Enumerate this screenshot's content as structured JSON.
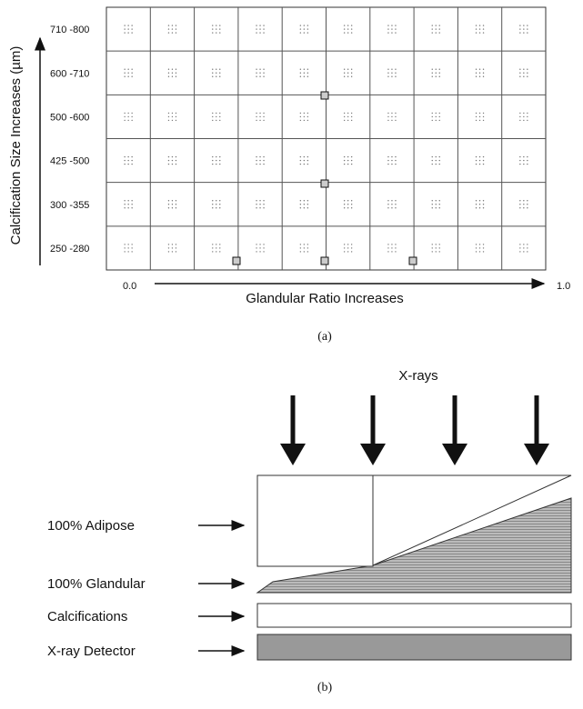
{
  "panel_a": {
    "y_axis_label": "Calcification Size Increases (µm)",
    "rows": [
      "710 -800",
      "600 -710",
      "500 -600",
      "425 -500",
      "300 -355",
      "250 -280"
    ],
    "x_start": "0.0",
    "x_end": "1.0",
    "x_axis_label": "Glandular Ratio Increases",
    "caption": "(a)"
  },
  "panel_b": {
    "source": "X-rays",
    "layers": [
      "100% Adipose",
      "100% Glandular",
      "Calcifications",
      "X-ray Detector"
    ],
    "caption": "(b)"
  }
}
